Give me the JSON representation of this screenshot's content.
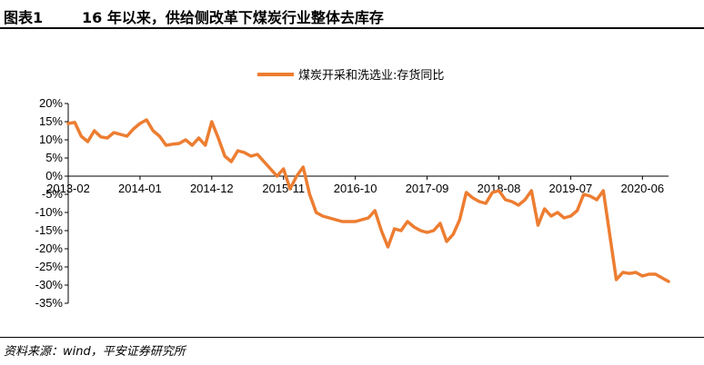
{
  "figure": {
    "label": "图表1",
    "title": "16 年以来，供给侧改革下煤炭行业整体去库存"
  },
  "source": "资料来源：wind，平安证券研究所",
  "chart_data": {
    "type": "line",
    "color": "#ED7D31",
    "series": [
      {
        "name": "煤炭开采和洗选业:存货同比",
        "points": [
          [
            "2013-02",
            14.5
          ],
          [
            "2013-03",
            14.8
          ],
          [
            "2013-04",
            11.0
          ],
          [
            "2013-05",
            9.5
          ],
          [
            "2013-06",
            12.5
          ],
          [
            "2013-07",
            10.8
          ],
          [
            "2013-08",
            10.5
          ],
          [
            "2013-09",
            12.0
          ],
          [
            "2013-10",
            11.5
          ],
          [
            "2013-11",
            11.0
          ],
          [
            "2013-12",
            13.0
          ],
          [
            "2014-01",
            14.5
          ],
          [
            "2014-02",
            15.5
          ],
          [
            "2014-03",
            12.5
          ],
          [
            "2014-04",
            11.0
          ],
          [
            "2014-05",
            8.5
          ],
          [
            "2014-06",
            8.8
          ],
          [
            "2014-07",
            9.0
          ],
          [
            "2014-08",
            10.0
          ],
          [
            "2014-09",
            8.5
          ],
          [
            "2014-10",
            10.5
          ],
          [
            "2014-11",
            8.5
          ],
          [
            "2014-12",
            15.0
          ],
          [
            "2015-01",
            10.5
          ],
          [
            "2015-02",
            5.5
          ],
          [
            "2015-03",
            4.0
          ],
          [
            "2015-04",
            7.0
          ],
          [
            "2015-05",
            6.5
          ],
          [
            "2015-06",
            5.5
          ],
          [
            "2015-07",
            6.0
          ],
          [
            "2015-08",
            4.0
          ],
          [
            "2015-09",
            2.0
          ],
          [
            "2015-10",
            0.0
          ],
          [
            "2015-11",
            2.0
          ],
          [
            "2015-12",
            -3.5
          ],
          [
            "2016-01",
            0.0
          ],
          [
            "2016-02",
            2.5
          ],
          [
            "2016-03",
            -5.0
          ],
          [
            "2016-04",
            -10.0
          ],
          [
            "2016-05",
            -11.0
          ],
          [
            "2016-06",
            -11.5
          ],
          [
            "2016-07",
            -12.0
          ],
          [
            "2016-08",
            -12.5
          ],
          [
            "2016-09",
            -12.5
          ],
          [
            "2016-10",
            -12.5
          ],
          [
            "2016-11",
            -12.0
          ],
          [
            "2016-12",
            -11.5
          ],
          [
            "2017-01",
            -9.5
          ],
          [
            "2017-02",
            -15.0
          ],
          [
            "2017-03",
            -19.5
          ],
          [
            "2017-04",
            -14.5
          ],
          [
            "2017-05",
            -15.0
          ],
          [
            "2017-06",
            -12.5
          ],
          [
            "2017-07",
            -14.0
          ],
          [
            "2017-08",
            -15.0
          ],
          [
            "2017-09",
            -15.5
          ],
          [
            "2017-10",
            -15.0
          ],
          [
            "2017-11",
            -13.0
          ],
          [
            "2017-12",
            -18.0
          ],
          [
            "2018-01",
            -16.0
          ],
          [
            "2018-02",
            -12.0
          ],
          [
            "2018-03",
            -4.5
          ],
          [
            "2018-04",
            -6.0
          ],
          [
            "2018-05",
            -7.0
          ],
          [
            "2018-06",
            -7.5
          ],
          [
            "2018-07",
            -4.5
          ],
          [
            "2018-08",
            -4.0
          ],
          [
            "2018-09",
            -6.5
          ],
          [
            "2018-10",
            -7.0
          ],
          [
            "2018-11",
            -8.0
          ],
          [
            "2018-12",
            -6.5
          ],
          [
            "2019-01",
            -4.0
          ],
          [
            "2019-02",
            -13.5
          ],
          [
            "2019-03",
            -9.0
          ],
          [
            "2019-04",
            -11.0
          ],
          [
            "2019-05",
            -10.0
          ],
          [
            "2019-06",
            -11.5
          ],
          [
            "2019-07",
            -11.0
          ],
          [
            "2019-08",
            -9.5
          ],
          [
            "2019-09",
            -5.0
          ],
          [
            "2019-10",
            -5.5
          ],
          [
            "2019-11",
            -6.5
          ],
          [
            "2019-12",
            -4.0
          ],
          [
            "2020-02",
            -28.5
          ],
          [
            "2020-03",
            -26.5
          ],
          [
            "2020-04",
            -26.8
          ],
          [
            "2020-05",
            -26.5
          ],
          [
            "2020-06",
            -27.5
          ],
          [
            "2020-07",
            -27.0
          ],
          [
            "2020-08",
            -27.0
          ],
          [
            "2020-09",
            -28.0
          ],
          [
            "2020-10",
            -29.0
          ]
        ]
      }
    ],
    "x_ticks": [
      "2013-02",
      "2014-01",
      "2014-12",
      "2015-11",
      "2016-10",
      "2017-09",
      "2018-08",
      "2019-07",
      "2020-06"
    ],
    "y_ticks": [
      20,
      15,
      10,
      5,
      0,
      -5,
      -10,
      -15,
      -20,
      -25,
      -30,
      -35
    ],
    "y_tick_labels": [
      "20%",
      "15%",
      "10%",
      "5%",
      "0%",
      "-5%",
      "-10%",
      "-15%",
      "-20%",
      "-25%",
      "-30%",
      "-35%"
    ],
    "ylim": [
      -35,
      20
    ],
    "xlim": [
      "2013-02",
      "2020-10"
    ],
    "grid": false,
    "legend_position": "top"
  }
}
